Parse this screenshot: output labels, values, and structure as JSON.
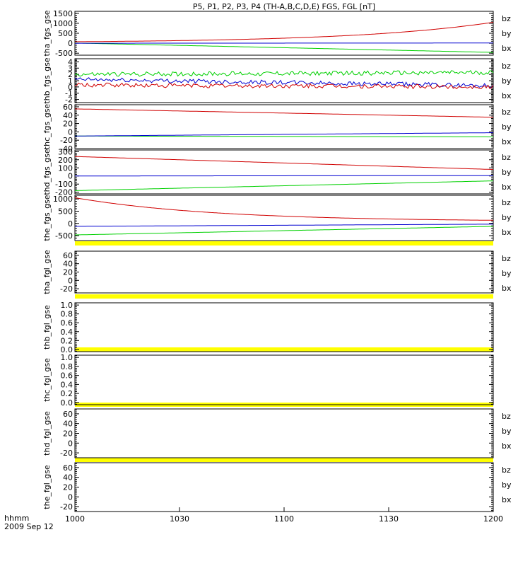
{
  "title": "P5, P1, P2, P3, P4 (TH-A,B,C,D,E) FGS, FGL [nT]",
  "colors": {
    "bz": "#d00000",
    "by": "#00d000",
    "bx": "#0000d0",
    "flag": "#ffff00"
  },
  "chart_data": {
    "type": "line",
    "x_tick_labels": [
      "1000",
      "1030",
      "1100",
      "1130",
      "1200"
    ],
    "x_unit_label": "hhmm",
    "date_label": "2009 Sep 12",
    "panels": [
      {
        "ylabel": "tha_fgs_gse",
        "yticks": [
          "1500",
          "1000",
          "500",
          "0",
          "-500"
        ],
        "ylim": [
          -600,
          1600
        ],
        "legend": [
          "bz",
          "by",
          "bx"
        ],
        "series": [
          {
            "name": "bz",
            "shape": "exp",
            "start": 75,
            "end": 1050
          },
          {
            "name": "by",
            "shape": "lin",
            "start": 10,
            "end": -460
          },
          {
            "name": "bx",
            "shape": "lin",
            "start": 0,
            "end": 10
          }
        ]
      },
      {
        "ylabel": "thb_fgs_gse",
        "yticks": [
          "4",
          "3",
          "2",
          "1",
          "0",
          "-1",
          "-2"
        ],
        "ylim": [
          -2.5,
          4.5
        ],
        "legend": [
          "bz",
          "by",
          "bx"
        ],
        "series": [
          {
            "name": "by",
            "shape": "noisy",
            "start": 2.0,
            "end": 2.3
          },
          {
            "name": "bx",
            "shape": "noisy",
            "start": 1.2,
            "end": 0.2
          },
          {
            "name": "bz",
            "shape": "noisy",
            "start": 0.3,
            "end": 0.0
          }
        ]
      },
      {
        "ylabel": "thc_fgs_gse",
        "yticks": [
          "60",
          "40",
          "20",
          "0",
          "-20",
          "-40"
        ],
        "ylim": [
          -40,
          65
        ],
        "legend": [
          "bz",
          "by",
          "bx"
        ],
        "series": [
          {
            "name": "bz",
            "shape": "lin",
            "start": 55,
            "end": 35
          },
          {
            "name": "by",
            "shape": "lin",
            "start": -10,
            "end": -12
          },
          {
            "name": "bx",
            "shape": "lin",
            "start": -10,
            "end": -2
          }
        ]
      },
      {
        "ylabel": "thd_fgs_gse",
        "yticks": [
          "300",
          "200",
          "100",
          "0",
          "-100",
          "-200"
        ],
        "ylim": [
          -220,
          320
        ],
        "legend": [
          "bz",
          "by",
          "bx"
        ],
        "series": [
          {
            "name": "bz",
            "shape": "lin",
            "start": 240,
            "end": 80
          },
          {
            "name": "bx",
            "shape": "lin",
            "start": 0,
            "end": 5
          },
          {
            "name": "by",
            "shape": "lin",
            "start": -180,
            "end": -60
          }
        ]
      },
      {
        "ylabel": "the_fgs_gse",
        "yticks": [
          "1000",
          "500",
          "0",
          "-500"
        ],
        "ylim": [
          -700,
          1150
        ],
        "legend": [
          "bz",
          "by",
          "bx"
        ],
        "series": [
          {
            "name": "bz",
            "shape": "decay",
            "start": 1050,
            "end": 80
          },
          {
            "name": "bx",
            "shape": "lin",
            "start": -120,
            "end": -30
          },
          {
            "name": "by",
            "shape": "lin",
            "start": -470,
            "end": -120
          }
        ]
      },
      {
        "ylabel": "tha_fgl_gse",
        "yticks": [
          "60",
          "40",
          "20",
          "0",
          "-20"
        ],
        "ylim": [
          -30,
          70
        ],
        "legend": [
          "bz",
          "by",
          "bx"
        ],
        "series": []
      },
      {
        "ylabel": "thb_fgl_gse",
        "yticks": [
          "1.0",
          "0.8",
          "0.6",
          "0.4",
          "0.2",
          "0.0"
        ],
        "ylim": [
          -0.05,
          1.05
        ],
        "legend": [],
        "series": []
      },
      {
        "ylabel": "thc_fgl_gse",
        "yticks": [
          "1.0",
          "0.8",
          "0.6",
          "0.4",
          "0.2",
          "0.0"
        ],
        "ylim": [
          -0.05,
          1.05
        ],
        "legend": [],
        "series": []
      },
      {
        "ylabel": "thd_fgl_gse",
        "yticks": [
          "60",
          "40",
          "20",
          "0",
          "-20"
        ],
        "ylim": [
          -30,
          70
        ],
        "legend": [
          "bz",
          "by",
          "bx"
        ],
        "series": []
      },
      {
        "ylabel": "the_fgl_gse",
        "yticks": [
          "60",
          "40",
          "20",
          "0",
          "-20"
        ],
        "ylim": [
          -30,
          70
        ],
        "legend": [
          "bz",
          "by",
          "bx"
        ],
        "series": []
      }
    ]
  }
}
